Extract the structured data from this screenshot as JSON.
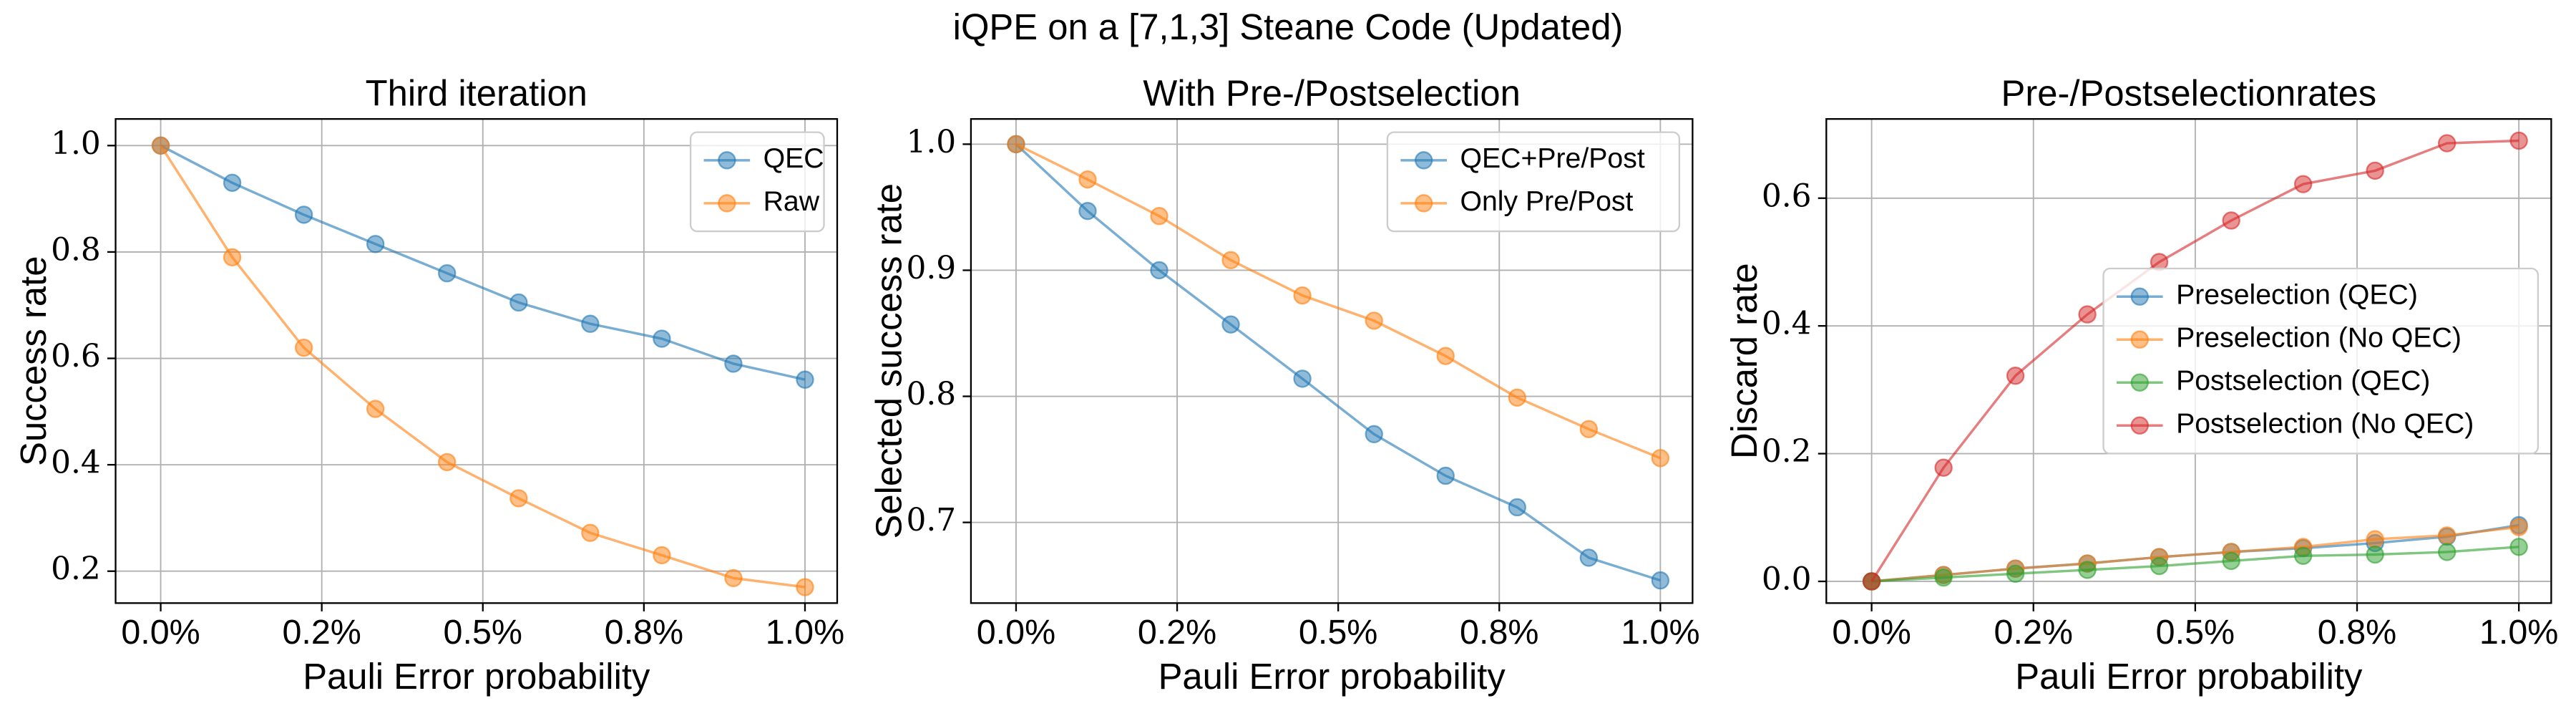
{
  "suptitle": "iQPE on a [7,1,3] Steane Code (Updated)",
  "chart_data": [
    {
      "type": "line",
      "title": "Third iteration",
      "xlabel": "Pauli Error probability",
      "ylabel": "Success rate",
      "x": [
        0,
        0.1111,
        0.2222,
        0.3333,
        0.4444,
        0.5556,
        0.6667,
        0.7778,
        0.8889,
        1.0
      ],
      "xlim": [
        -0.07,
        1.05
      ],
      "xticks": [
        {
          "value": 0,
          "label": "0.0%"
        },
        {
          "value": 0.25,
          "label": "0.2%"
        },
        {
          "value": 0.5,
          "label": "0.5%"
        },
        {
          "value": 0.75,
          "label": "0.8%"
        },
        {
          "value": 1,
          "label": "1.0%"
        }
      ],
      "ylim": [
        0.14,
        1.05
      ],
      "yticks": [
        0.2,
        0.4,
        0.6,
        0.8,
        {
          "value": 1,
          "label": "1.0"
        }
      ],
      "grid": true,
      "legend": "upper right",
      "series": [
        {
          "name": "QEC",
          "color": "#1f77b4",
          "values": [
            1.0,
            0.93,
            0.87,
            0.815,
            0.76,
            0.705,
            0.665,
            0.637,
            0.59,
            0.56
          ]
        },
        {
          "name": "Raw",
          "color": "#ff7f0e",
          "values": [
            1.0,
            0.79,
            0.62,
            0.505,
            0.405,
            0.337,
            0.272,
            0.23,
            0.187,
            0.17
          ]
        }
      ]
    },
    {
      "type": "line",
      "title": "With Pre-/Postselection",
      "xlabel": "Pauli Error probability",
      "ylabel": "Selected success rate",
      "x": [
        0,
        0.1111,
        0.2222,
        0.3333,
        0.4444,
        0.5556,
        0.6667,
        0.7778,
        0.8889,
        1.0
      ],
      "xlim": [
        -0.07,
        1.05
      ],
      "xticks": [
        {
          "value": 0,
          "label": "0.0%"
        },
        {
          "value": 0.25,
          "label": "0.2%"
        },
        {
          "value": 0.5,
          "label": "0.5%"
        },
        {
          "value": 0.75,
          "label": "0.8%"
        },
        {
          "value": 1,
          "label": "1.0%"
        }
      ],
      "ylim": [
        0.636,
        1.02
      ],
      "yticks": [
        0.7,
        0.8,
        0.9,
        {
          "value": 1,
          "label": "1.0"
        }
      ],
      "grid": true,
      "legend": "upper right",
      "series": [
        {
          "name": "QEC+Pre/Post",
          "color": "#1f77b4",
          "values": [
            1.0,
            0.947,
            0.9,
            0.857,
            0.814,
            0.77,
            0.737,
            0.712,
            0.672,
            0.654
          ]
        },
        {
          "name": "Only Pre/Post",
          "color": "#ff7f0e",
          "values": [
            1.0,
            0.972,
            0.943,
            0.908,
            0.88,
            0.86,
            0.832,
            0.799,
            0.774,
            0.751
          ]
        }
      ]
    },
    {
      "type": "line",
      "title": "Pre-/Postselectionrates",
      "xlabel": "Pauli Error probability",
      "ylabel": "Discard rate",
      "x": [
        0,
        0.1111,
        0.2222,
        0.3333,
        0.4444,
        0.5556,
        0.6667,
        0.7778,
        0.8889,
        1.0
      ],
      "xlim": [
        -0.07,
        1.05
      ],
      "xticks": [
        {
          "value": 0,
          "label": "0.0%"
        },
        {
          "value": 0.25,
          "label": "0.2%"
        },
        {
          "value": 0.5,
          "label": "0.5%"
        },
        {
          "value": 0.75,
          "label": "0.8%"
        },
        {
          "value": 1,
          "label": "1.0%"
        }
      ],
      "ylim": [
        -0.034,
        0.724
      ],
      "yticks": [
        {
          "value": 0,
          "label": "0.0"
        },
        0.2,
        0.4,
        0.6
      ],
      "grid": true,
      "legend": "center right",
      "series": [
        {
          "name": "Preselection (QEC)",
          "color": "#1f77b4",
          "values": [
            0,
            0.01,
            0.02,
            0.028,
            0.038,
            0.046,
            0.052,
            0.06,
            0.07,
            0.088
          ]
        },
        {
          "name": "Preselection (No QEC)",
          "color": "#ff7f0e",
          "values": [
            0,
            0.01,
            0.02,
            0.028,
            0.038,
            0.046,
            0.054,
            0.066,
            0.072,
            0.085
          ]
        },
        {
          "name": "Postselection (QEC)",
          "color": "#2ca02c",
          "values": [
            0,
            0.006,
            0.012,
            0.018,
            0.024,
            0.032,
            0.04,
            0.042,
            0.046,
            0.054
          ]
        },
        {
          "name": "Postselection (No QEC)",
          "color": "#d62728",
          "values": [
            0,
            0.178,
            0.322,
            0.418,
            0.5,
            0.565,
            0.622,
            0.643,
            0.686,
            0.69
          ]
        }
      ]
    }
  ]
}
